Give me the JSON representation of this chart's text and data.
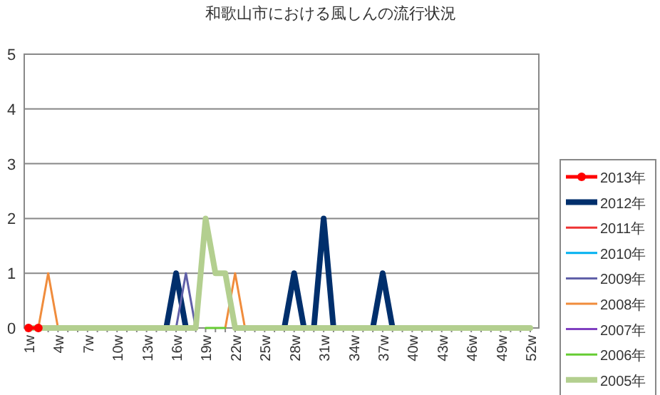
{
  "chart_data": {
    "type": "line",
    "title": "和歌山市における風しんの流行状況",
    "categories": [
      "1w",
      null,
      null,
      "4w",
      null,
      null,
      "7w",
      null,
      null,
      "10w",
      null,
      null,
      "13w",
      null,
      null,
      "16w",
      null,
      null,
      "19w",
      null,
      null,
      "22w",
      null,
      null,
      "25w",
      null,
      null,
      "28w",
      null,
      null,
      "31w",
      null,
      null,
      "34w",
      null,
      null,
      "37w",
      null,
      null,
      "40w",
      null,
      null,
      "43w",
      null,
      null,
      "46w",
      null,
      null,
      "49w",
      null,
      null,
      "52w"
    ],
    "ylim": [
      0,
      5
    ],
    "yticks": [
      0,
      1,
      2,
      3,
      4,
      5
    ],
    "grid": "y",
    "legend": "right",
    "marker": "none",
    "series": [
      {
        "name": "2013年",
        "color": "#ff0000",
        "marker": "circle",
        "values": [
          0,
          0,
          null,
          null,
          null,
          null,
          null,
          null,
          null,
          null,
          null,
          null,
          null,
          null,
          null,
          null,
          null,
          null,
          null,
          null,
          null,
          null,
          null,
          null,
          null,
          null,
          null,
          null,
          null,
          null,
          null,
          null,
          null,
          null,
          null,
          null,
          null,
          null,
          null,
          null,
          null,
          null,
          null,
          null,
          null,
          null,
          null,
          null,
          null,
          null,
          null,
          null
        ]
      },
      {
        "name": "2012年",
        "color": "#002f6c",
        "values": [
          null,
          null,
          null,
          null,
          null,
          null,
          null,
          null,
          null,
          null,
          null,
          null,
          null,
          null,
          0,
          1,
          0,
          null,
          null,
          null,
          null,
          null,
          null,
          null,
          null,
          null,
          0,
          1,
          0,
          0,
          2,
          0,
          null,
          null,
          null,
          0,
          1,
          0,
          null,
          null,
          null,
          null,
          null,
          null,
          null,
          null,
          null,
          null,
          null,
          null,
          null,
          null
        ]
      },
      {
        "name": "2011年",
        "color": "#ee3333",
        "values": [
          null,
          null,
          null,
          null,
          null,
          null,
          null,
          null,
          null,
          null,
          null,
          null,
          null,
          null,
          null,
          null,
          null,
          null,
          null,
          null,
          null,
          null,
          null,
          null,
          null,
          null,
          null,
          null,
          null,
          null,
          null,
          null,
          null,
          null,
          null,
          null,
          null,
          null,
          null,
          null,
          null,
          null,
          null,
          null,
          null,
          null,
          null,
          null,
          null,
          null,
          null,
          null
        ]
      },
      {
        "name": "2010年",
        "color": "#00b0f0",
        "values": [
          null,
          null,
          null,
          null,
          null,
          null,
          null,
          null,
          null,
          null,
          null,
          null,
          null,
          null,
          null,
          null,
          null,
          null,
          null,
          null,
          null,
          null,
          null,
          null,
          null,
          null,
          null,
          null,
          null,
          null,
          null,
          null,
          null,
          null,
          null,
          null,
          null,
          null,
          null,
          null,
          null,
          null,
          null,
          null,
          null,
          null,
          null,
          null,
          null,
          null,
          null,
          null
        ]
      },
      {
        "name": "2009年",
        "color": "#6060a8",
        "values": [
          null,
          null,
          null,
          null,
          null,
          null,
          null,
          null,
          null,
          null,
          null,
          null,
          null,
          null,
          null,
          0,
          1,
          0,
          null,
          null,
          null,
          null,
          null,
          null,
          null,
          null,
          null,
          null,
          null,
          null,
          null,
          null,
          null,
          null,
          null,
          null,
          null,
          null,
          null,
          null,
          null,
          null,
          null,
          null,
          null,
          null,
          null,
          null,
          null,
          null,
          null,
          null
        ]
      },
      {
        "name": "2008年",
        "color": "#f08c3c",
        "values": [
          null,
          0,
          1,
          0,
          null,
          null,
          null,
          null,
          null,
          null,
          null,
          null,
          null,
          null,
          null,
          null,
          null,
          null,
          null,
          null,
          0,
          1,
          0,
          null,
          null,
          null,
          null,
          null,
          null,
          null,
          null,
          null,
          null,
          null,
          null,
          null,
          null,
          null,
          null,
          null,
          null,
          null,
          null,
          null,
          null,
          null,
          null,
          null,
          null,
          null,
          null,
          null
        ]
      },
      {
        "name": "2007年",
        "color": "#8040c0",
        "values": [
          null,
          null,
          null,
          null,
          null,
          null,
          null,
          null,
          null,
          null,
          null,
          null,
          null,
          null,
          null,
          null,
          null,
          null,
          null,
          null,
          null,
          null,
          null,
          null,
          null,
          null,
          null,
          null,
          null,
          null,
          null,
          null,
          null,
          null,
          null,
          null,
          null,
          null,
          null,
          null,
          null,
          null,
          null,
          null,
          null,
          null,
          null,
          null,
          null,
          null,
          null,
          null
        ]
      },
      {
        "name": "2006年",
        "color": "#66cc33",
        "values": [
          null,
          null,
          null,
          null,
          null,
          null,
          null,
          null,
          null,
          null,
          null,
          null,
          null,
          null,
          null,
          null,
          null,
          null,
          0,
          0,
          0,
          null,
          null,
          null,
          null,
          null,
          null,
          null,
          null,
          null,
          null,
          null,
          null,
          null,
          null,
          null,
          null,
          null,
          null,
          null,
          null,
          null,
          null,
          null,
          null,
          null,
          null,
          null,
          null,
          null,
          null,
          null
        ]
      },
      {
        "name": "2005年",
        "color": "#b3cf8f",
        "values": [
          0,
          0,
          0,
          0,
          0,
          0,
          0,
          0,
          0,
          0,
          0,
          0,
          0,
          0,
          0,
          0,
          0,
          0,
          2,
          1,
          1,
          0,
          0,
          0,
          0,
          0,
          0,
          0,
          0,
          0,
          0,
          0,
          0,
          0,
          0,
          0,
          0,
          0,
          0,
          0,
          0,
          0,
          0,
          0,
          0,
          0,
          0,
          0,
          0,
          0,
          0,
          0
        ]
      }
    ]
  }
}
